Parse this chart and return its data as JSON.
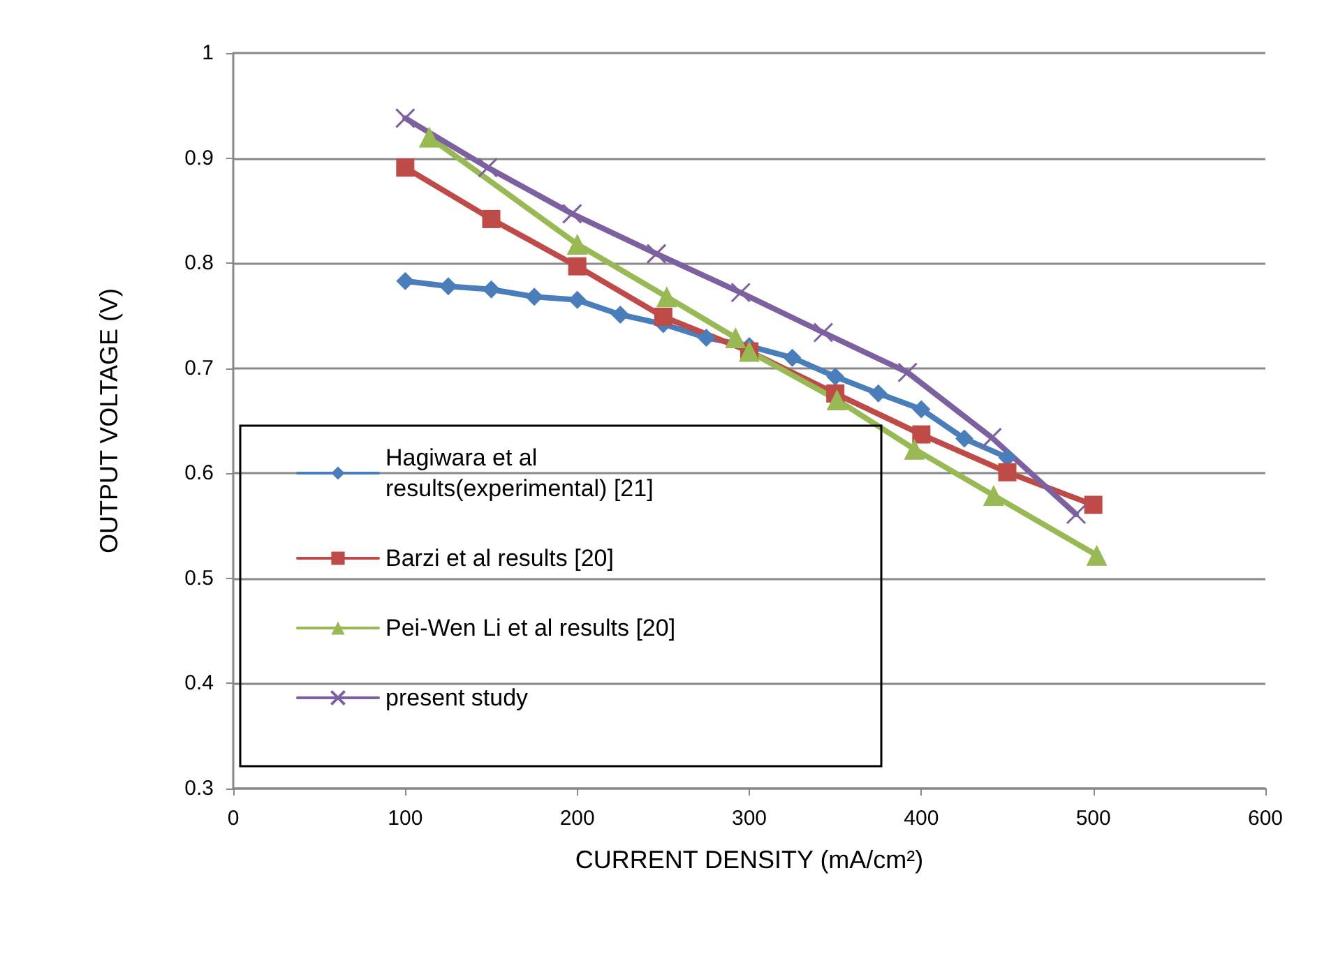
{
  "chart_data": {
    "type": "line",
    "xlabel": "CURRENT DENSITY (mA/cm²)",
    "ylabel": "OUTPUT VOLTAGE (V)",
    "xlim": [
      0,
      600
    ],
    "xticks": [
      0,
      100,
      200,
      300,
      400,
      500,
      600
    ],
    "ylim": [
      0.3,
      1
    ],
    "yticks": [
      0.3,
      0.4,
      0.5,
      0.6,
      0.7,
      0.8,
      0.9,
      1
    ],
    "grid": "y",
    "legend": "bottom left",
    "series": [
      {
        "name": "Hagiwara et al results(experimental) [21]",
        "color": "#4a7ebb",
        "marker": "diamond",
        "x": [
          100,
          125,
          150,
          175,
          200,
          225,
          250,
          275,
          300,
          325,
          350,
          375,
          400,
          425,
          450
        ],
        "values": [
          0.783,
          0.778,
          0.775,
          0.768,
          0.765,
          0.751,
          0.742,
          0.729,
          0.721,
          0.71,
          0.692,
          0.676,
          0.661,
          0.633,
          0.615
        ]
      },
      {
        "name": "Barzi et al results [20]",
        "color": "#be4b48",
        "marker": "square",
        "x": [
          100,
          150,
          200,
          250,
          300,
          350,
          400,
          450,
          500
        ],
        "values": [
          0.891,
          0.842,
          0.797,
          0.749,
          0.716,
          0.676,
          0.637,
          0.601,
          0.57
        ]
      },
      {
        "name": "Pei-Wen Li et al results [20]",
        "color": "#98b954",
        "marker": "triangle",
        "x": [
          114,
          200,
          252,
          292,
          300,
          351,
          396,
          442,
          502
        ],
        "values": [
          0.92,
          0.818,
          0.768,
          0.729,
          0.716,
          0.67,
          0.623,
          0.579,
          0.522
        ]
      },
      {
        "name": "present study",
        "color": "#7d60a0",
        "marker": "cross",
        "x": [
          100,
          148,
          197,
          246,
          295,
          343,
          392,
          441,
          490
        ],
        "values": [
          0.938,
          0.891,
          0.847,
          0.809,
          0.772,
          0.734,
          0.696,
          0.634,
          0.561
        ]
      }
    ]
  }
}
